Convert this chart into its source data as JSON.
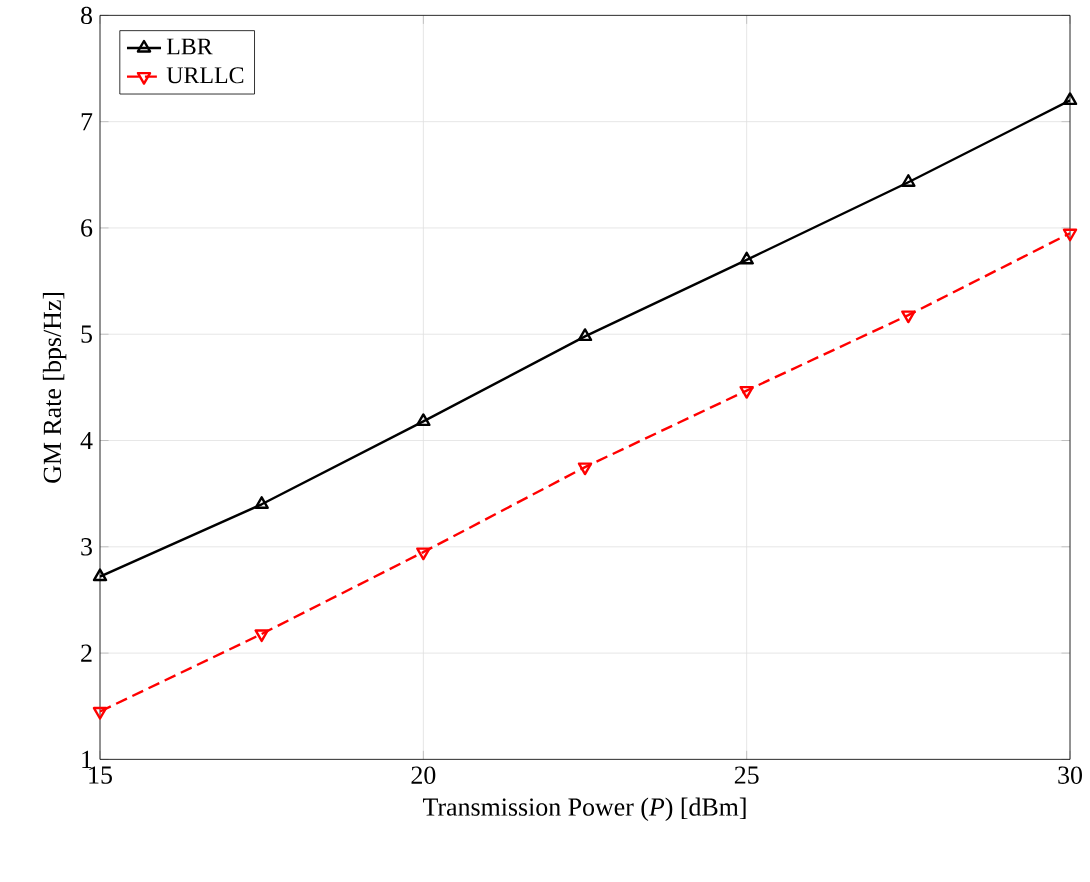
{
  "chart_data": {
    "type": "line",
    "xlabel": "Transmission Power (*P*) [dBm]",
    "ylabel": "GM Rate [bps/Hz]",
    "x": [
      15,
      17.5,
      20,
      22.5,
      25,
      27.5,
      30
    ],
    "series": [
      {
        "name": "LBR",
        "color": "#000000",
        "marker": "triangle",
        "line_style": "solid",
        "values": [
          2.72,
          3.4,
          4.18,
          4.98,
          5.7,
          6.43,
          7.2
        ]
      },
      {
        "name": "URLLC",
        "color": "#ff0000",
        "marker": "triangle-down",
        "line_style": "dashed",
        "values": [
          1.45,
          2.18,
          2.95,
          3.75,
          4.47,
          5.18,
          5.95
        ]
      }
    ],
    "xlim": [
      15,
      30
    ],
    "xticks": [
      15,
      20,
      25,
      30
    ],
    "ylim": [
      1,
      8
    ],
    "yticks": [
      1,
      2,
      3,
      4,
      5,
      6,
      7,
      8
    ],
    "grid": true,
    "legend": "top left"
  }
}
